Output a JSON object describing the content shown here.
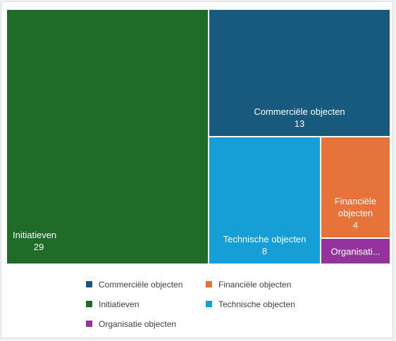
{
  "chart_data": {
    "type": "treemap",
    "title": "",
    "items": [
      {
        "name": "Initiatieven",
        "value": 29,
        "display_label": "Initiatieven",
        "value_label": "29",
        "color": "#1f6b28"
      },
      {
        "name": "Commerciële objecten",
        "value": 13,
        "display_label": "Commerciële objecten",
        "value_label": "13",
        "color": "#185a7e"
      },
      {
        "name": "Technische objecten",
        "value": 8,
        "display_label": "Technische objecten",
        "value_label": "8",
        "color": "#159fd6"
      },
      {
        "name": "Financiële objecten",
        "value": 4,
        "display_label": "Financiële\nobjecten",
        "value_label": "4",
        "color": "#e6733a"
      },
      {
        "name": "Organisatie objecten",
        "value": 2,
        "display_label": "Organisati...",
        "value_label": "",
        "color": "#93339b"
      }
    ],
    "legend": {
      "placement": "bottom",
      "entries": [
        {
          "label": "Commerciële objecten",
          "color": "#185a7e"
        },
        {
          "label": "Financiële objecten",
          "color": "#e6733a"
        },
        {
          "label": "Initiatieven",
          "color": "#1f6b28"
        },
        {
          "label": "Technische objecten",
          "color": "#159fd6"
        },
        {
          "label": "Organisatie objecten",
          "color": "#93339b"
        }
      ]
    }
  }
}
